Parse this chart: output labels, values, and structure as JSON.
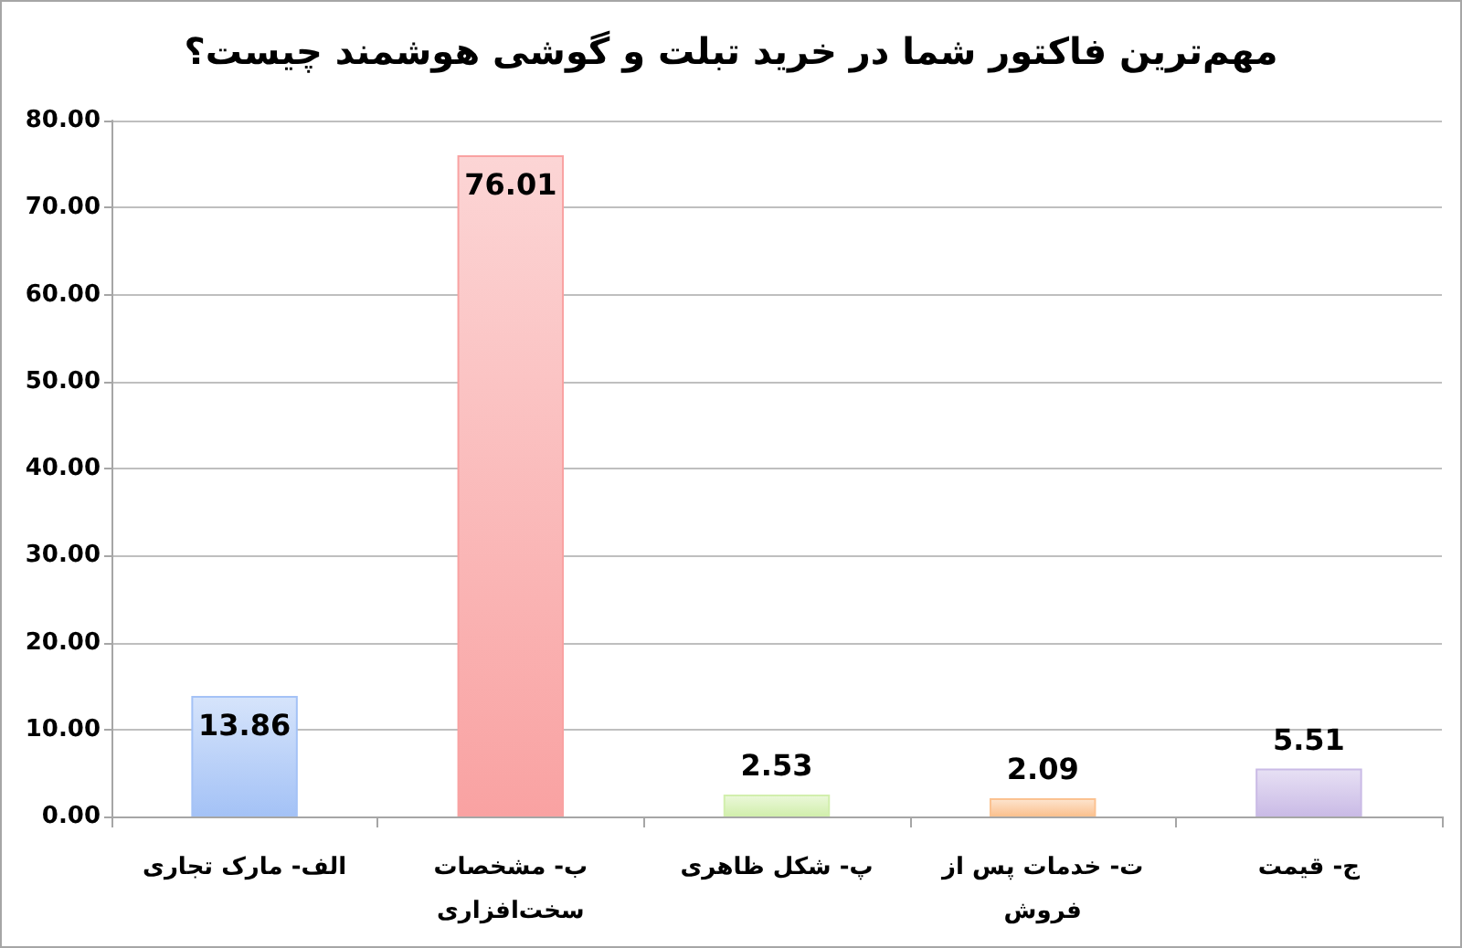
{
  "chart_data": {
    "type": "bar",
    "title": "مهم‌ترین فاکتور شما در خرید تبلت و گوشی هوشمند چیست؟",
    "categories": [
      "الف- مارک تجاری",
      "ب- مشخصات سخت‌افزاری",
      "پ- شکل ظاهری",
      "ت- خدمات پس از فروش",
      "ج- قیمت"
    ],
    "values": [
      13.86,
      76.01,
      2.53,
      2.09,
      5.51
    ],
    "colors": [
      "#a4c2f6",
      "#f9a2a2",
      "#d2efad",
      "#fbc291",
      "#cabbe6"
    ],
    "ylim": [
      0,
      80
    ],
    "yticks": [
      {
        "value": 0,
        "label": "0.00"
      },
      {
        "value": 10,
        "label": "10.00"
      },
      {
        "value": 20,
        "label": "20.00"
      },
      {
        "value": 30,
        "label": "30.00"
      },
      {
        "value": 40,
        "label": "40.00"
      },
      {
        "value": 50,
        "label": "50.00"
      },
      {
        "value": 60,
        "label": "60.00"
      },
      {
        "value": 70,
        "label": "70.00"
      },
      {
        "value": 80,
        "label": "80.00"
      }
    ],
    "grid": "y",
    "data_labels": true
  }
}
